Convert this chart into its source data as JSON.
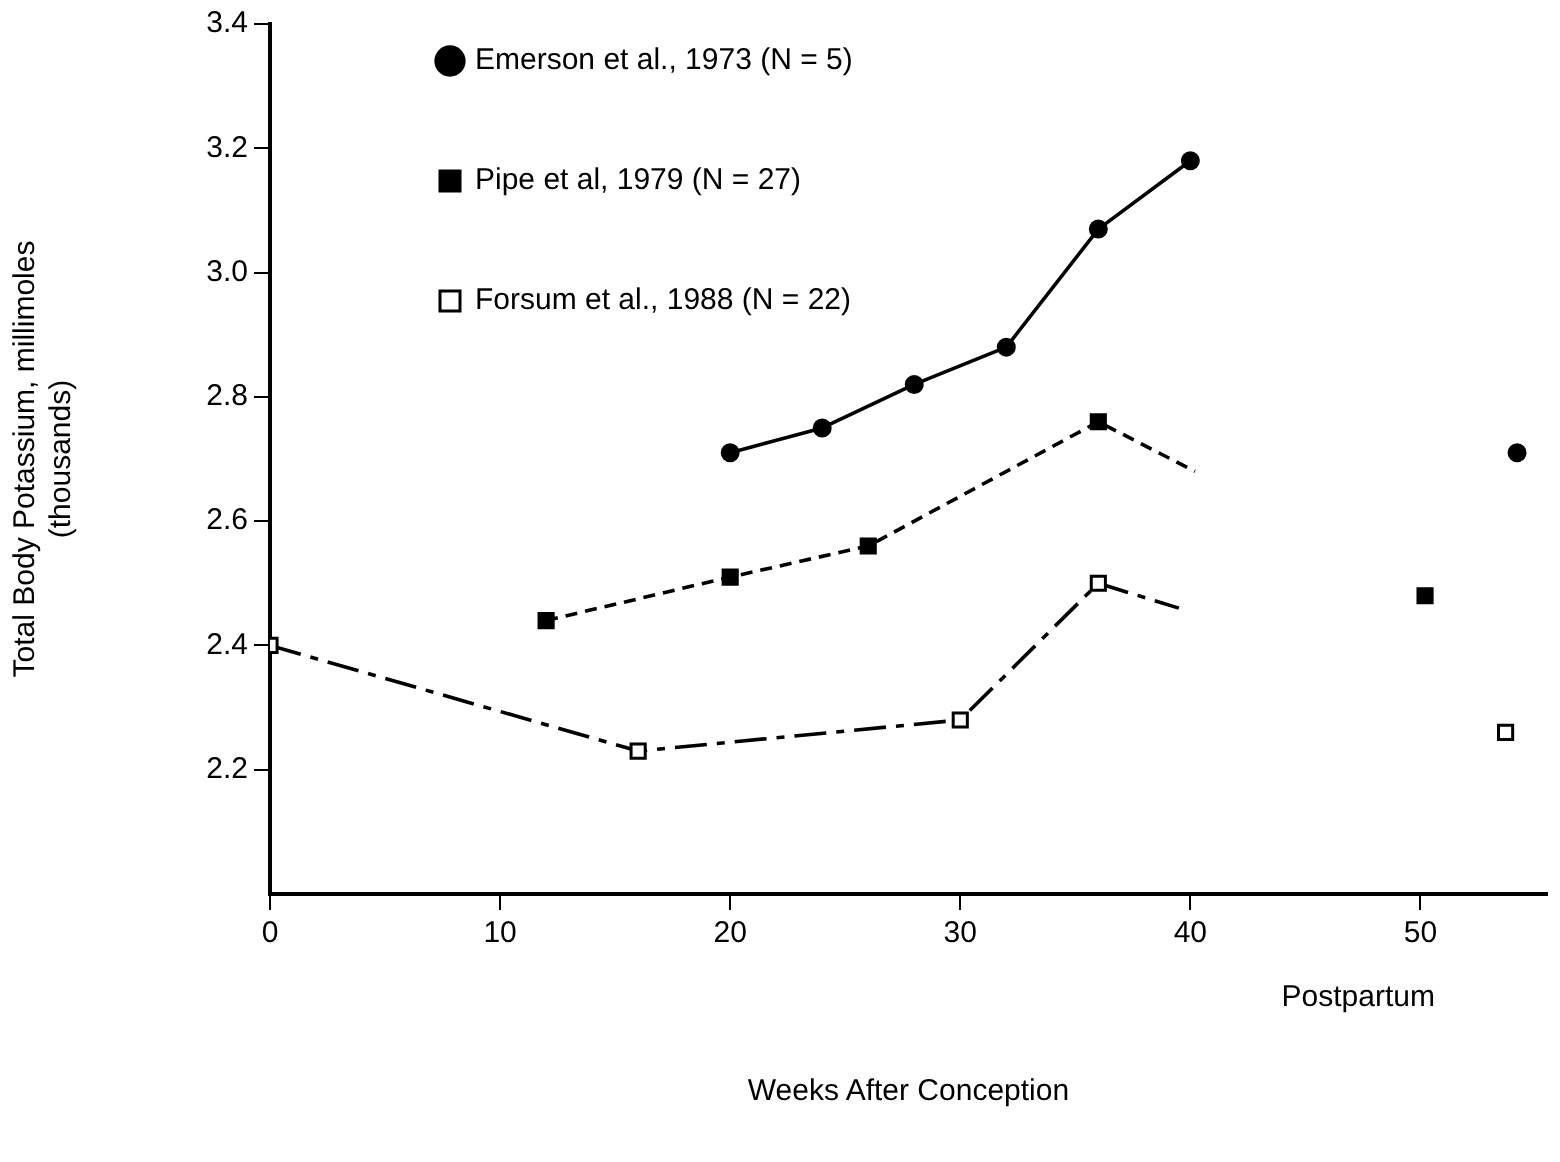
{
  "chart_data": {
    "type": "line",
    "xlabel": "Weeks After Conception",
    "ylabel": "Total Body Potassium, millimoles\n(thousands)",
    "xlim": [
      0,
      55.5
    ],
    "xticks": [
      0,
      10,
      20,
      30,
      40,
      50
    ],
    "ylim": [
      2.0,
      3.4
    ],
    "yticks": [
      2.2,
      2.4,
      2.6,
      2.8,
      {
        "value": 3,
        "label": "3.0"
      },
      3.2,
      3.4
    ],
    "grid": false,
    "legend": "top left",
    "series": [
      {
        "name": "Emerson et al., 1973 (N = 5)",
        "color": "#000000",
        "marker": "circle",
        "line_style": "solid",
        "x": [
          20,
          24,
          28,
          32,
          36,
          40,
          47,
          54.2
        ],
        "values": [
          2.71,
          2.75,
          2.82,
          2.88,
          3.07,
          3.18,
          null,
          2.71
        ]
      },
      {
        "name": "Pipe et al, 1979 (N = 27)",
        "color": "#000000",
        "marker": "square",
        "line_style": "dashed",
        "x": [
          12,
          20,
          26,
          36,
          40.2,
          45,
          50.2
        ],
        "values": [
          2.44,
          2.51,
          2.56,
          2.76,
          2.68,
          null,
          2.48
        ]
      },
      {
        "name": "Forsum et al., 1988 (N = 22)",
        "color": "#000000",
        "marker": "square-open",
        "line_style": "dashdot",
        "x": [
          0,
          16,
          30,
          36,
          39.5,
          47,
          53.7
        ],
        "values": [
          2.4,
          2.23,
          2.28,
          2.5,
          2.46,
          null,
          2.26
        ]
      }
    ],
    "annotations": [
      "Postpartum"
    ]
  }
}
